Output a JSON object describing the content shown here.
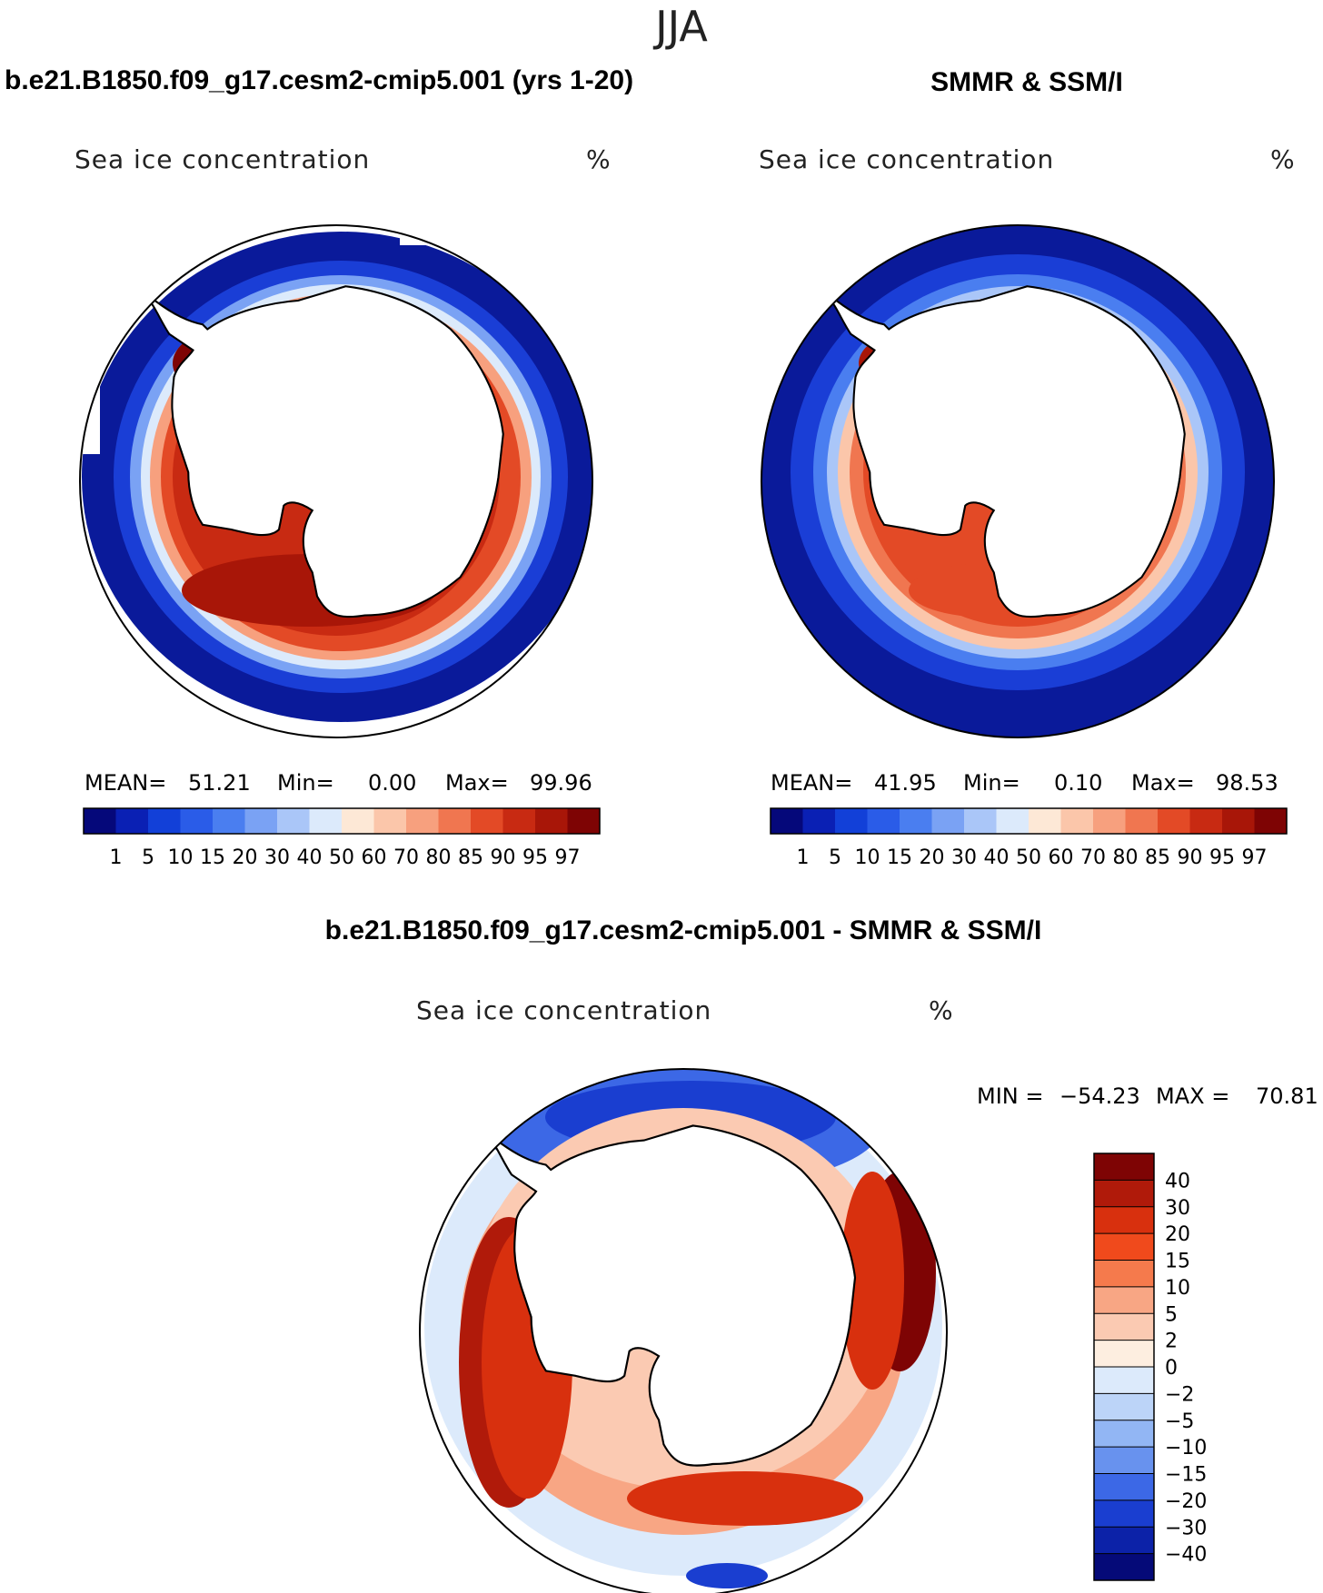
{
  "figure": {
    "season": "JJA",
    "panels": [
      {
        "id": "model",
        "title": "b.e21.B1850.f09_g17.cesm2-cmip5.001 (yrs 1-20)",
        "variable": "Sea ice concentration",
        "units": "%",
        "stats": {
          "mean_label": "MEAN=",
          "mean": "51.21",
          "min_label": "Min=",
          "min": "0.00",
          "max_label": "Max=",
          "max": "99.96"
        }
      },
      {
        "id": "obs",
        "title": "SMMR & SSM/I",
        "variable": "Sea ice concentration",
        "units": "%",
        "stats": {
          "mean_label": "MEAN=",
          "mean": "41.95",
          "min_label": "Min=",
          "min": "0.10",
          "max_label": "Max=",
          "max": "98.53"
        }
      },
      {
        "id": "diff",
        "title": "b.e21.B1850.f09_g17.cesm2-cmip5.001 - SMMR & SSM/I",
        "variable": "Sea ice concentration",
        "units": "%",
        "stats": {
          "min_label": "MIN =",
          "min": "−54.23",
          "max_label": "MAX =",
          "max": "70.81"
        }
      }
    ]
  },
  "chart_data": [
    {
      "type": "heatmap",
      "projection": "south-polar-stereographic",
      "title": "b.e21.B1850.f09_g17.cesm2-cmip5.001 (yrs 1-20)",
      "variable": "Sea ice concentration",
      "units": "%",
      "mean": 51.21,
      "min": 0.0,
      "max": 99.96,
      "levels": [
        "1",
        "5",
        "10",
        "15",
        "20",
        "30",
        "40",
        "50",
        "60",
        "70",
        "80",
        "85",
        "90",
        "95",
        "97"
      ],
      "colors": [
        "#05087a",
        "#0a20b4",
        "#1240d8",
        "#2a5ce8",
        "#4a7ef0",
        "#7aa2f4",
        "#aac6f8",
        "#dceafb",
        "#fde8d6",
        "#fbc6aa",
        "#f7a07e",
        "#f07650",
        "#e34a26",
        "#c82a12",
        "#a81608",
        "#7e0404"
      ]
    },
    {
      "type": "heatmap",
      "projection": "south-polar-stereographic",
      "title": "SMMR & SSM/I",
      "variable": "Sea ice concentration",
      "units": "%",
      "mean": 41.95,
      "min": 0.1,
      "max": 98.53,
      "levels": [
        "1",
        "5",
        "10",
        "15",
        "20",
        "30",
        "40",
        "50",
        "60",
        "70",
        "80",
        "85",
        "90",
        "95",
        "97"
      ],
      "colors": [
        "#05087a",
        "#0a20b4",
        "#1240d8",
        "#2a5ce8",
        "#4a7ef0",
        "#7aa2f4",
        "#aac6f8",
        "#dceafb",
        "#fde8d6",
        "#fbc6aa",
        "#f7a07e",
        "#f07650",
        "#e34a26",
        "#c82a12",
        "#a81608",
        "#7e0404"
      ]
    },
    {
      "type": "heatmap",
      "projection": "south-polar-stereographic",
      "title": "b.e21.B1850.f09_g17.cesm2-cmip5.001 - SMMR & SSM/I",
      "variable": "Sea ice concentration",
      "units": "%",
      "min": -54.23,
      "max": 70.81,
      "levels": [
        "40",
        "30",
        "20",
        "15",
        "10",
        "5",
        "2",
        "0",
        "−2",
        "−5",
        "−10",
        "−15",
        "−20",
        "−30",
        "−40"
      ],
      "colors": [
        "#7e0404",
        "#b01a0a",
        "#d8300e",
        "#f04a1c",
        "#f57a4c",
        "#f8a684",
        "#fbcab2",
        "#fdeee0",
        "#dceafb",
        "#bcd4f8",
        "#92b6f4",
        "#6892ee",
        "#3c68e6",
        "#1a3ed0",
        "#0c22a8",
        "#050a78"
      ]
    }
  ]
}
